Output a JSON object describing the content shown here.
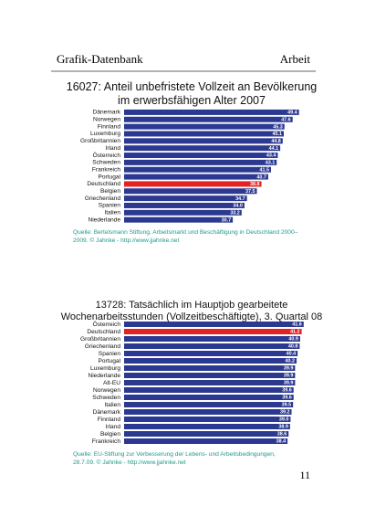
{
  "header": {
    "left": "Grafik-Datenbank",
    "right": "Arbeit"
  },
  "chart_data": [
    {
      "type": "hbar",
      "title": "16027: Anteil unbefristete Vollzeit an Bevölkerung im erwerbsfähigen Alter 2007",
      "categories": [
        "Dänemark",
        "Norwegen",
        "Finnland",
        "Luxemburg",
        "Großbritannien",
        "Irland",
        "Österreich",
        "Schweden",
        "Frankreich",
        "Portugal",
        "Deutschland",
        "Belgien",
        "Griechenland",
        "Spanien",
        "Italien",
        "Niederlande"
      ],
      "values": [
        49.4,
        47.6,
        45.3,
        45.1,
        44.8,
        44.1,
        43.4,
        43.1,
        41.5,
        40.7,
        38.8,
        37.5,
        34.7,
        34.0,
        33.2,
        30.7
      ],
      "value_labels": [
        "49.4",
        "47.6",
        "45.3",
        "45.1",
        "44.8",
        "44.1",
        "43.4",
        "43.1",
        "41.5",
        "40.7",
        "38.8",
        "37.5",
        "34.7",
        "34.0",
        "33.2",
        "30.7"
      ],
      "colors": [
        "#2b3990",
        "#2b3990",
        "#2b3990",
        "#2b3990",
        "#2b3990",
        "#2b3990",
        "#2b3990",
        "#2b3990",
        "#2b3990",
        "#2b3990",
        "#e3231f",
        "#2b3990",
        "#2b3990",
        "#2b3990",
        "#2b3990",
        "#2b3990"
      ],
      "xlim": [
        0,
        50
      ],
      "source": "Quelle: Bertelsmann Stiftung, Arbeitsmarkt und Beschäftigung in Deutschland 2000–2009. © Jahnke - http://www.jjahnke.net"
    },
    {
      "type": "hbar",
      "title": "13728: Tatsächlich im Hauptjob gearbeitete Wochenarbeitsstunden (Vollzeitbeschäftigte), 3. Quartal 08",
      "categories": [
        "Österreich",
        "Deutschland",
        "Großbritannien",
        "Griechenland",
        "Spanien",
        "Portugal",
        "Luxemburg",
        "Niederlande",
        "Alt-EU",
        "Norwegen",
        "Schweden",
        "Italien",
        "Dänemark",
        "Finnland",
        "Irland",
        "Belgien",
        "Frankreich"
      ],
      "values": [
        41.6,
        41.2,
        40.9,
        40.8,
        40.4,
        40.2,
        39.9,
        39.9,
        39.9,
        39.6,
        39.6,
        39.5,
        39.2,
        39.0,
        38.9,
        38.6,
        38.4
      ],
      "value_labels": [
        "41.6",
        "41.2",
        "40.9",
        "40.8",
        "40.4",
        "40.2",
        "39.9",
        "39.9",
        "39.9",
        "39.6",
        "39.6",
        "39.5",
        "39.2",
        "39.0",
        "38.9",
        "38.6",
        "38.4"
      ],
      "colors": [
        "#2b3990",
        "#e3231f",
        "#2b3990",
        "#2b3990",
        "#2b3990",
        "#2b3990",
        "#2b3990",
        "#2b3990",
        "#2b3990",
        "#2b3990",
        "#2b3990",
        "#2b3990",
        "#2b3990",
        "#2b3990",
        "#2b3990",
        "#2b3990",
        "#2b3990"
      ],
      "xlim": [
        6,
        42
      ],
      "source": "Quelle: EU-Stiftung zur Verbesserung der Lebens- und Arbeitsbedingungen, 28.7.09. © Jahnke - http://www.jjahnke.net"
    }
  ],
  "page_number": "11"
}
